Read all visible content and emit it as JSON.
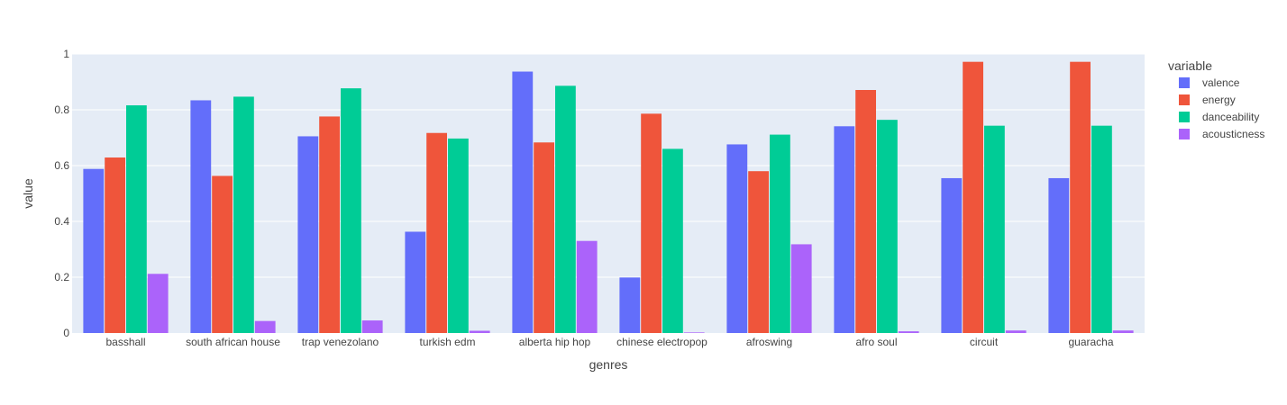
{
  "chart_data": {
    "type": "bar",
    "barmode": "group",
    "title": "",
    "xlabel": "genres",
    "ylabel": "value",
    "ylim": [
      0,
      1
    ],
    "yticks": [
      0,
      0.2,
      0.4,
      0.6,
      0.8,
      1
    ],
    "ytick_labels": [
      "0",
      "0.2",
      "0.4",
      "0.6",
      "0.8",
      "1"
    ],
    "grid": true,
    "legend_title": "variable",
    "legend_position": "top-right",
    "categories": [
      "basshall",
      "south african house",
      "trap venezolano",
      "turkish edm",
      "alberta hip hop",
      "chinese electropop",
      "afroswing",
      "afro soul",
      "circuit",
      "guaracha"
    ],
    "series": [
      {
        "name": "valence",
        "color": "#636efa",
        "values": [
          0.588,
          0.834,
          0.705,
          0.363,
          0.937,
          0.199,
          0.676,
          0.741,
          0.555,
          0.555
        ]
      },
      {
        "name": "energy",
        "color": "#ef553b",
        "values": [
          0.629,
          0.563,
          0.776,
          0.717,
          0.683,
          0.786,
          0.58,
          0.871,
          0.972,
          0.972
        ]
      },
      {
        "name": "danceability",
        "color": "#00cc96",
        "values": [
          0.816,
          0.847,
          0.877,
          0.697,
          0.886,
          0.66,
          0.711,
          0.764,
          0.743,
          0.743
        ]
      },
      {
        "name": "acousticness",
        "color": "#ab63fa",
        "values": [
          0.212,
          0.043,
          0.045,
          0.008,
          0.33,
          0.002,
          0.318,
          0.006,
          0.009,
          0.009
        ]
      }
    ]
  },
  "colors": {
    "plot_background": "#e5ecf6",
    "gridline": "#ffffff",
    "text": "#444444"
  }
}
